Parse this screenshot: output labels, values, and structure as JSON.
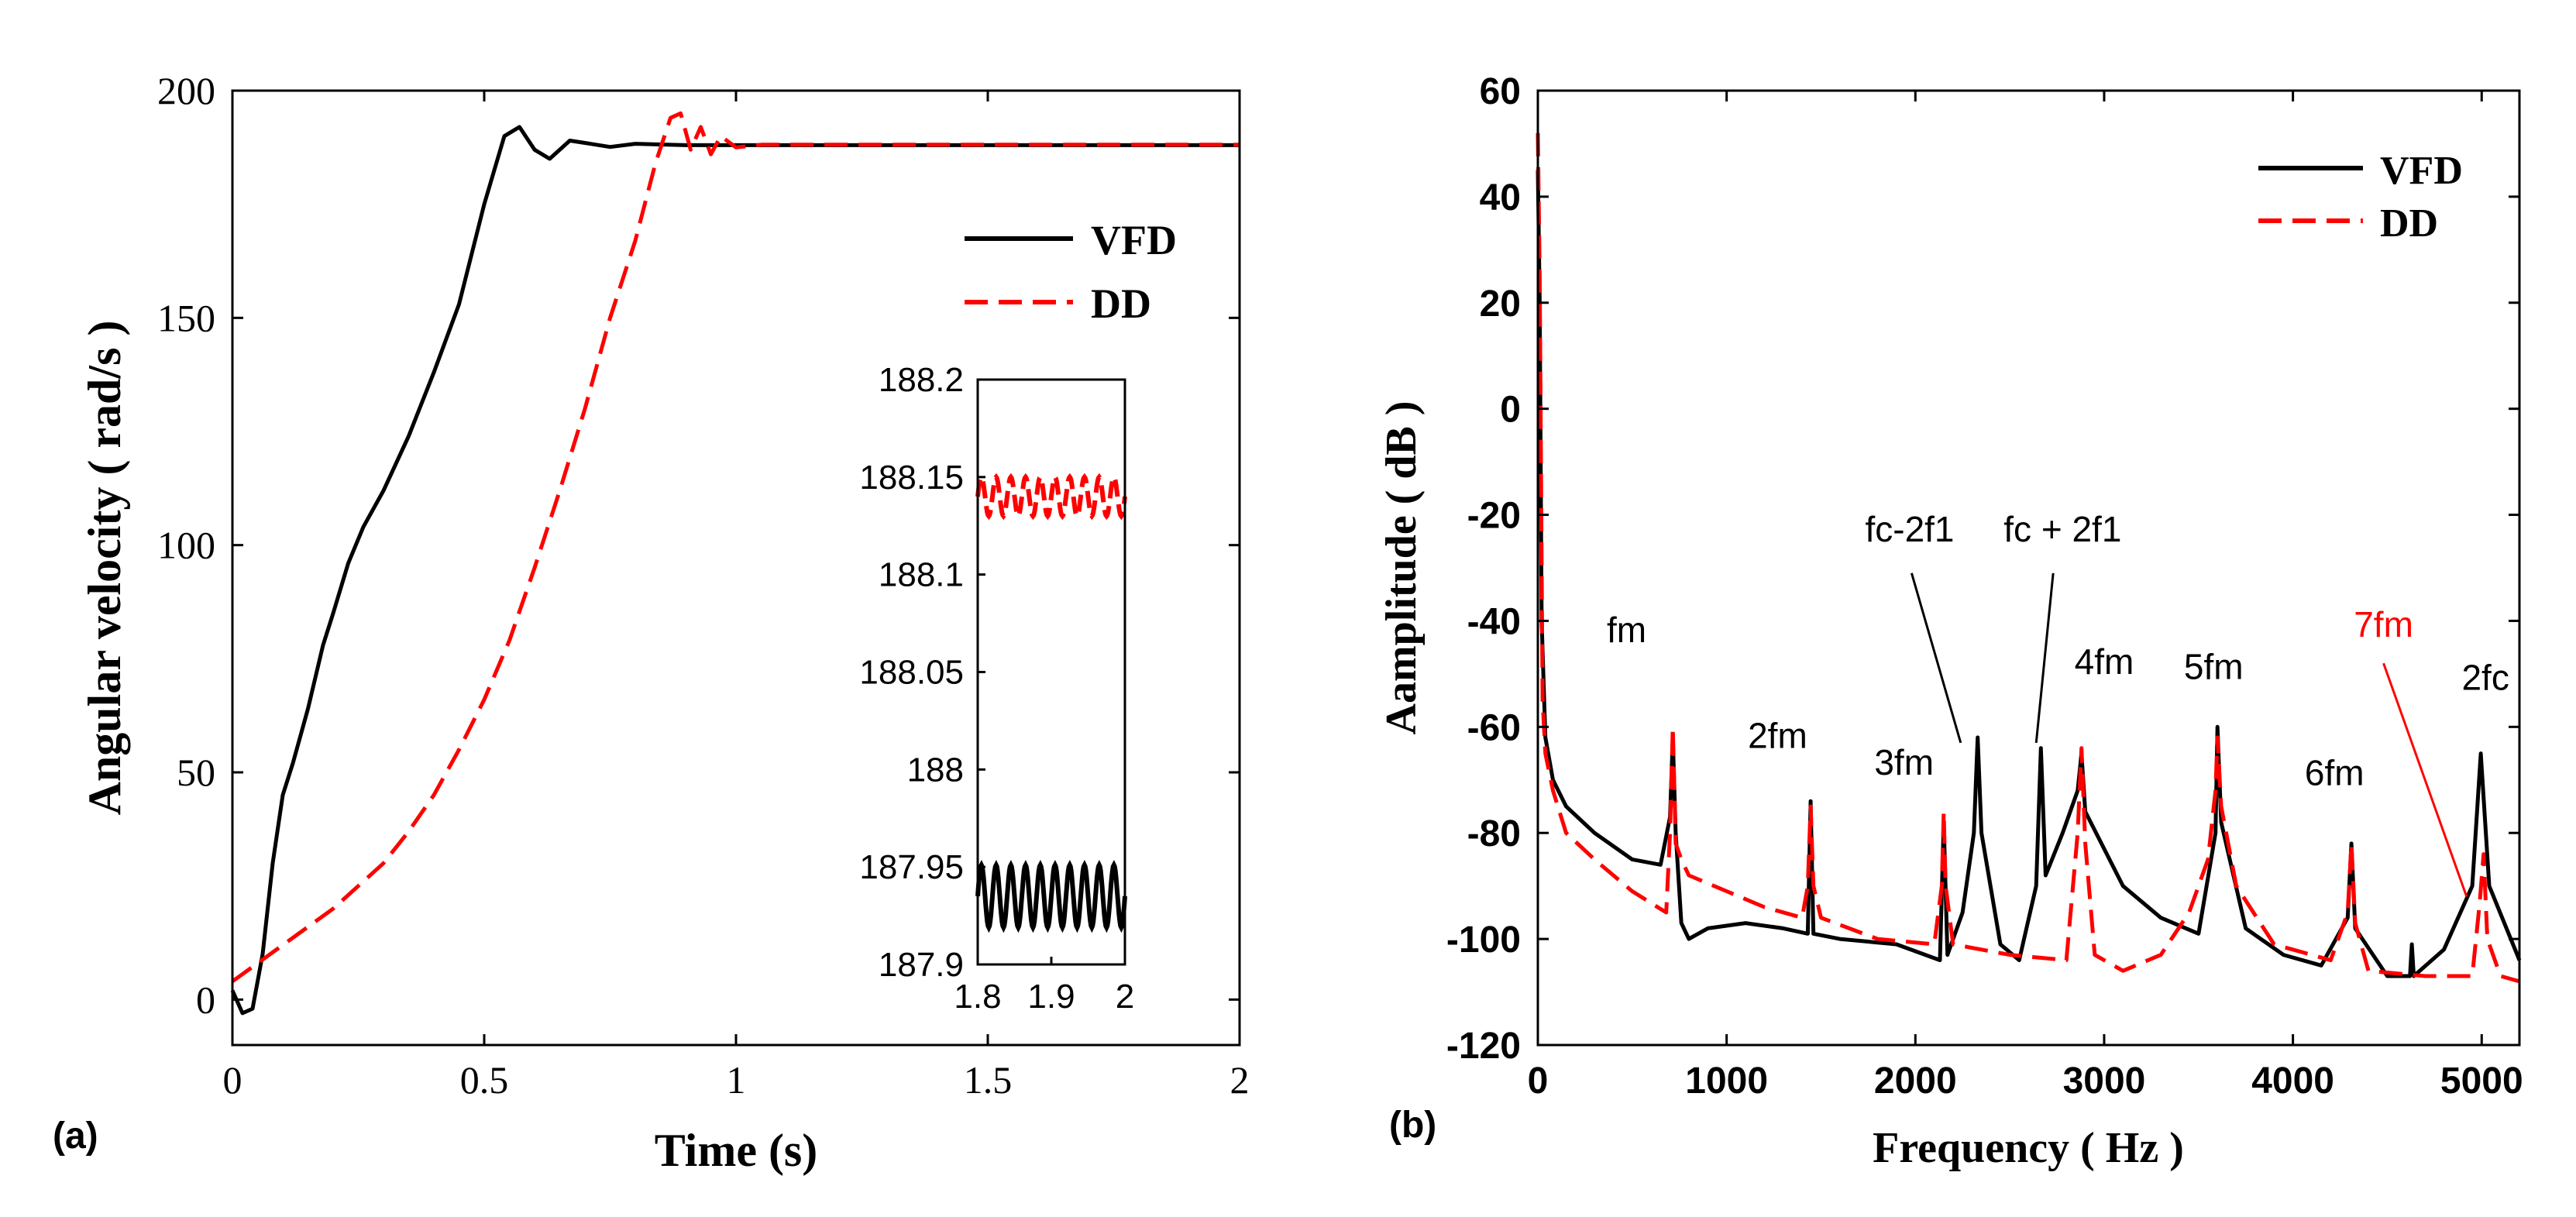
{
  "chart_data": [
    {
      "type": "line",
      "panel_label": "(a)",
      "title": "",
      "xlabel": "Time (s)",
      "ylabel": "Angular velocity ( rad/s )",
      "xlim": [
        0,
        2
      ],
      "ylim": [
        -10,
        200
      ],
      "xticks": [
        "0",
        "0.5",
        "1",
        "1.5",
        "2"
      ],
      "yticks": [
        "0",
        "50",
        "100",
        "150",
        "200"
      ],
      "legend": {
        "position": "right",
        "entries": [
          "VFD",
          "DD"
        ]
      },
      "colors": {
        "VFD": "#000000",
        "DD": "#ff0000"
      },
      "series": [
        {
          "name": "VFD",
          "style": "solid",
          "x": [
            0,
            0.02,
            0.04,
            0.06,
            0.08,
            0.1,
            0.12,
            0.15,
            0.18,
            0.2,
            0.23,
            0.26,
            0.3,
            0.35,
            0.4,
            0.45,
            0.5,
            0.54,
            0.57,
            0.6,
            0.63,
            0.67,
            0.7,
            0.75,
            0.8,
            0.9,
            1.0,
            1.5,
            2.0
          ],
          "y": [
            2,
            -3,
            -2,
            10,
            30,
            45,
            52,
            64,
            78,
            85,
            96,
            104,
            112,
            124,
            138,
            153,
            175,
            190,
            192,
            187,
            185,
            189,
            188.5,
            187.6,
            188.3,
            188,
            188,
            188,
            188
          ]
        },
        {
          "name": "DD",
          "style": "dashed",
          "x": [
            0,
            0.05,
            0.1,
            0.15,
            0.2,
            0.25,
            0.3,
            0.35,
            0.4,
            0.45,
            0.5,
            0.55,
            0.6,
            0.65,
            0.7,
            0.75,
            0.8,
            0.84,
            0.87,
            0.89,
            0.91,
            0.93,
            0.95,
            0.97,
            1.0,
            1.05,
            1.5,
            2.0
          ],
          "y": [
            4,
            8,
            12,
            16,
            20,
            25,
            30,
            37,
            45,
            55,
            66,
            79,
            95,
            112,
            130,
            150,
            167,
            184,
            194,
            195,
            187,
            192,
            186,
            190,
            187.5,
            188.1,
            188.1,
            188.1
          ]
        }
      ],
      "inset": {
        "xlim": [
          1.8,
          2
        ],
        "ylim": [
          187.9,
          188.2
        ],
        "xticks": [
          "1.8",
          "1.9",
          "2"
        ],
        "yticks": [
          "187.9",
          "187.95",
          "188",
          "188.05",
          "188.1",
          "188.15",
          "188.2"
        ],
        "series": [
          {
            "name": "VFD",
            "center": 187.935,
            "amplitude": 0.016,
            "cycles": 10
          },
          {
            "name": "DD",
            "center": 188.14,
            "amplitude": 0.01,
            "cycles": 10
          }
        ]
      }
    },
    {
      "type": "line",
      "panel_label": "(b)",
      "title": "",
      "xlabel": "Frequency ( Hz )",
      "ylabel": "Aamplitude ( dB )",
      "xlim": [
        0,
        5200
      ],
      "ylim": [
        -120,
        60
      ],
      "xticks": [
        "0",
        "1000",
        "2000",
        "3000",
        "4000",
        "5000"
      ],
      "yticks": [
        "60",
        "40",
        "20",
        "0",
        "-20",
        "-40",
        "-60",
        "-80",
        "-100",
        "-120"
      ],
      "legend": {
        "position": "top-right",
        "entries": [
          "VFD",
          "DD"
        ]
      },
      "colors": {
        "VFD": "#000000",
        "DD": "#ff0000"
      },
      "series": [
        {
          "name": "VFD",
          "style": "solid",
          "x": [
            0,
            10,
            20,
            40,
            80,
            150,
            300,
            500,
            650,
            700,
            715,
            730,
            760,
            800,
            900,
            1100,
            1300,
            1430,
            1445,
            1460,
            1600,
            1900,
            2130,
            2150,
            2170,
            2250,
            2310,
            2330,
            2350,
            2450,
            2550,
            2640,
            2665,
            2690,
            2780,
            2860,
            2880,
            2900,
            3100,
            3300,
            3500,
            3590,
            3600,
            3620,
            3750,
            3950,
            4150,
            4290,
            4310,
            4330,
            4500,
            4620,
            4630,
            4640,
            4800,
            4950,
            4995,
            5040,
            5200
          ],
          "y": [
            45,
            20,
            -40,
            -62,
            -70,
            -75,
            -80,
            -85,
            -86,
            -77,
            -62,
            -80,
            -97,
            -100,
            -98,
            -97,
            -98,
            -99,
            -74,
            -99,
            -100,
            -101,
            -104,
            -78,
            -103,
            -95,
            -80,
            -62,
            -80,
            -101,
            -104,
            -90,
            -64,
            -88,
            -80,
            -72,
            -65,
            -76,
            -90,
            -96,
            -99,
            -80,
            -60,
            -78,
            -98,
            -103,
            -105,
            -96,
            -82,
            -98,
            -107,
            -107,
            -101,
            -107,
            -102,
            -90,
            -65,
            -90,
            -104
          ]
        },
        {
          "name": "DD",
          "style": "dashed",
          "x": [
            0,
            10,
            25,
            40,
            80,
            150,
            300,
            500,
            680,
            700,
            715,
            730,
            760,
            800,
            1000,
            1200,
            1400,
            1430,
            1445,
            1460,
            1500,
            1800,
            2100,
            2140,
            2150,
            2160,
            2200,
            2500,
            2800,
            2860,
            2880,
            2900,
            2950,
            3100,
            3300,
            3450,
            3550,
            3590,
            3600,
            3620,
            3700,
            3900,
            4200,
            4290,
            4310,
            4330,
            4400,
            4700,
            4950,
            4990,
            5010,
            5030,
            5100,
            5200
          ],
          "y": [
            52,
            25,
            -55,
            -65,
            -72,
            -80,
            -85,
            -91,
            -95,
            -80,
            -60,
            -82,
            -85,
            -88,
            -91,
            -94,
            -96,
            -90,
            -75,
            -90,
            -96,
            -100,
            -101,
            -90,
            -76,
            -90,
            -101,
            -103,
            -104,
            -80,
            -64,
            -82,
            -103,
            -106,
            -103,
            -95,
            -85,
            -72,
            -62,
            -75,
            -90,
            -101,
            -104,
            -95,
            -82,
            -97,
            -106,
            -107,
            -107,
            -93,
            -84,
            -100,
            -107,
            -108
          ]
        }
      ],
      "annotations": [
        {
          "text": "fm",
          "x": 470,
          "y": -44,
          "color": "#000000"
        },
        {
          "text": "2fm",
          "x": 1270,
          "y": -64,
          "color": "#000000"
        },
        {
          "text": "3fm",
          "x": 1940,
          "y": -69,
          "color": "#000000"
        },
        {
          "text": "fc-2f1",
          "x": 1970,
          "y": -25,
          "color": "#000000"
        },
        {
          "text": "fc + 2f1",
          "x": 2780,
          "y": -25,
          "color": "#000000"
        },
        {
          "text": "4fm",
          "x": 3000,
          "y": -50,
          "color": "#000000"
        },
        {
          "text": "5fm",
          "x": 3580,
          "y": -51,
          "color": "#000000"
        },
        {
          "text": "6fm",
          "x": 4220,
          "y": -71,
          "color": "#000000"
        },
        {
          "text": "7fm",
          "x": 4480,
          "y": -43,
          "color": "#ff0000"
        },
        {
          "text": "2fc",
          "x": 5020,
          "y": -53,
          "color": "#000000"
        }
      ]
    }
  ]
}
